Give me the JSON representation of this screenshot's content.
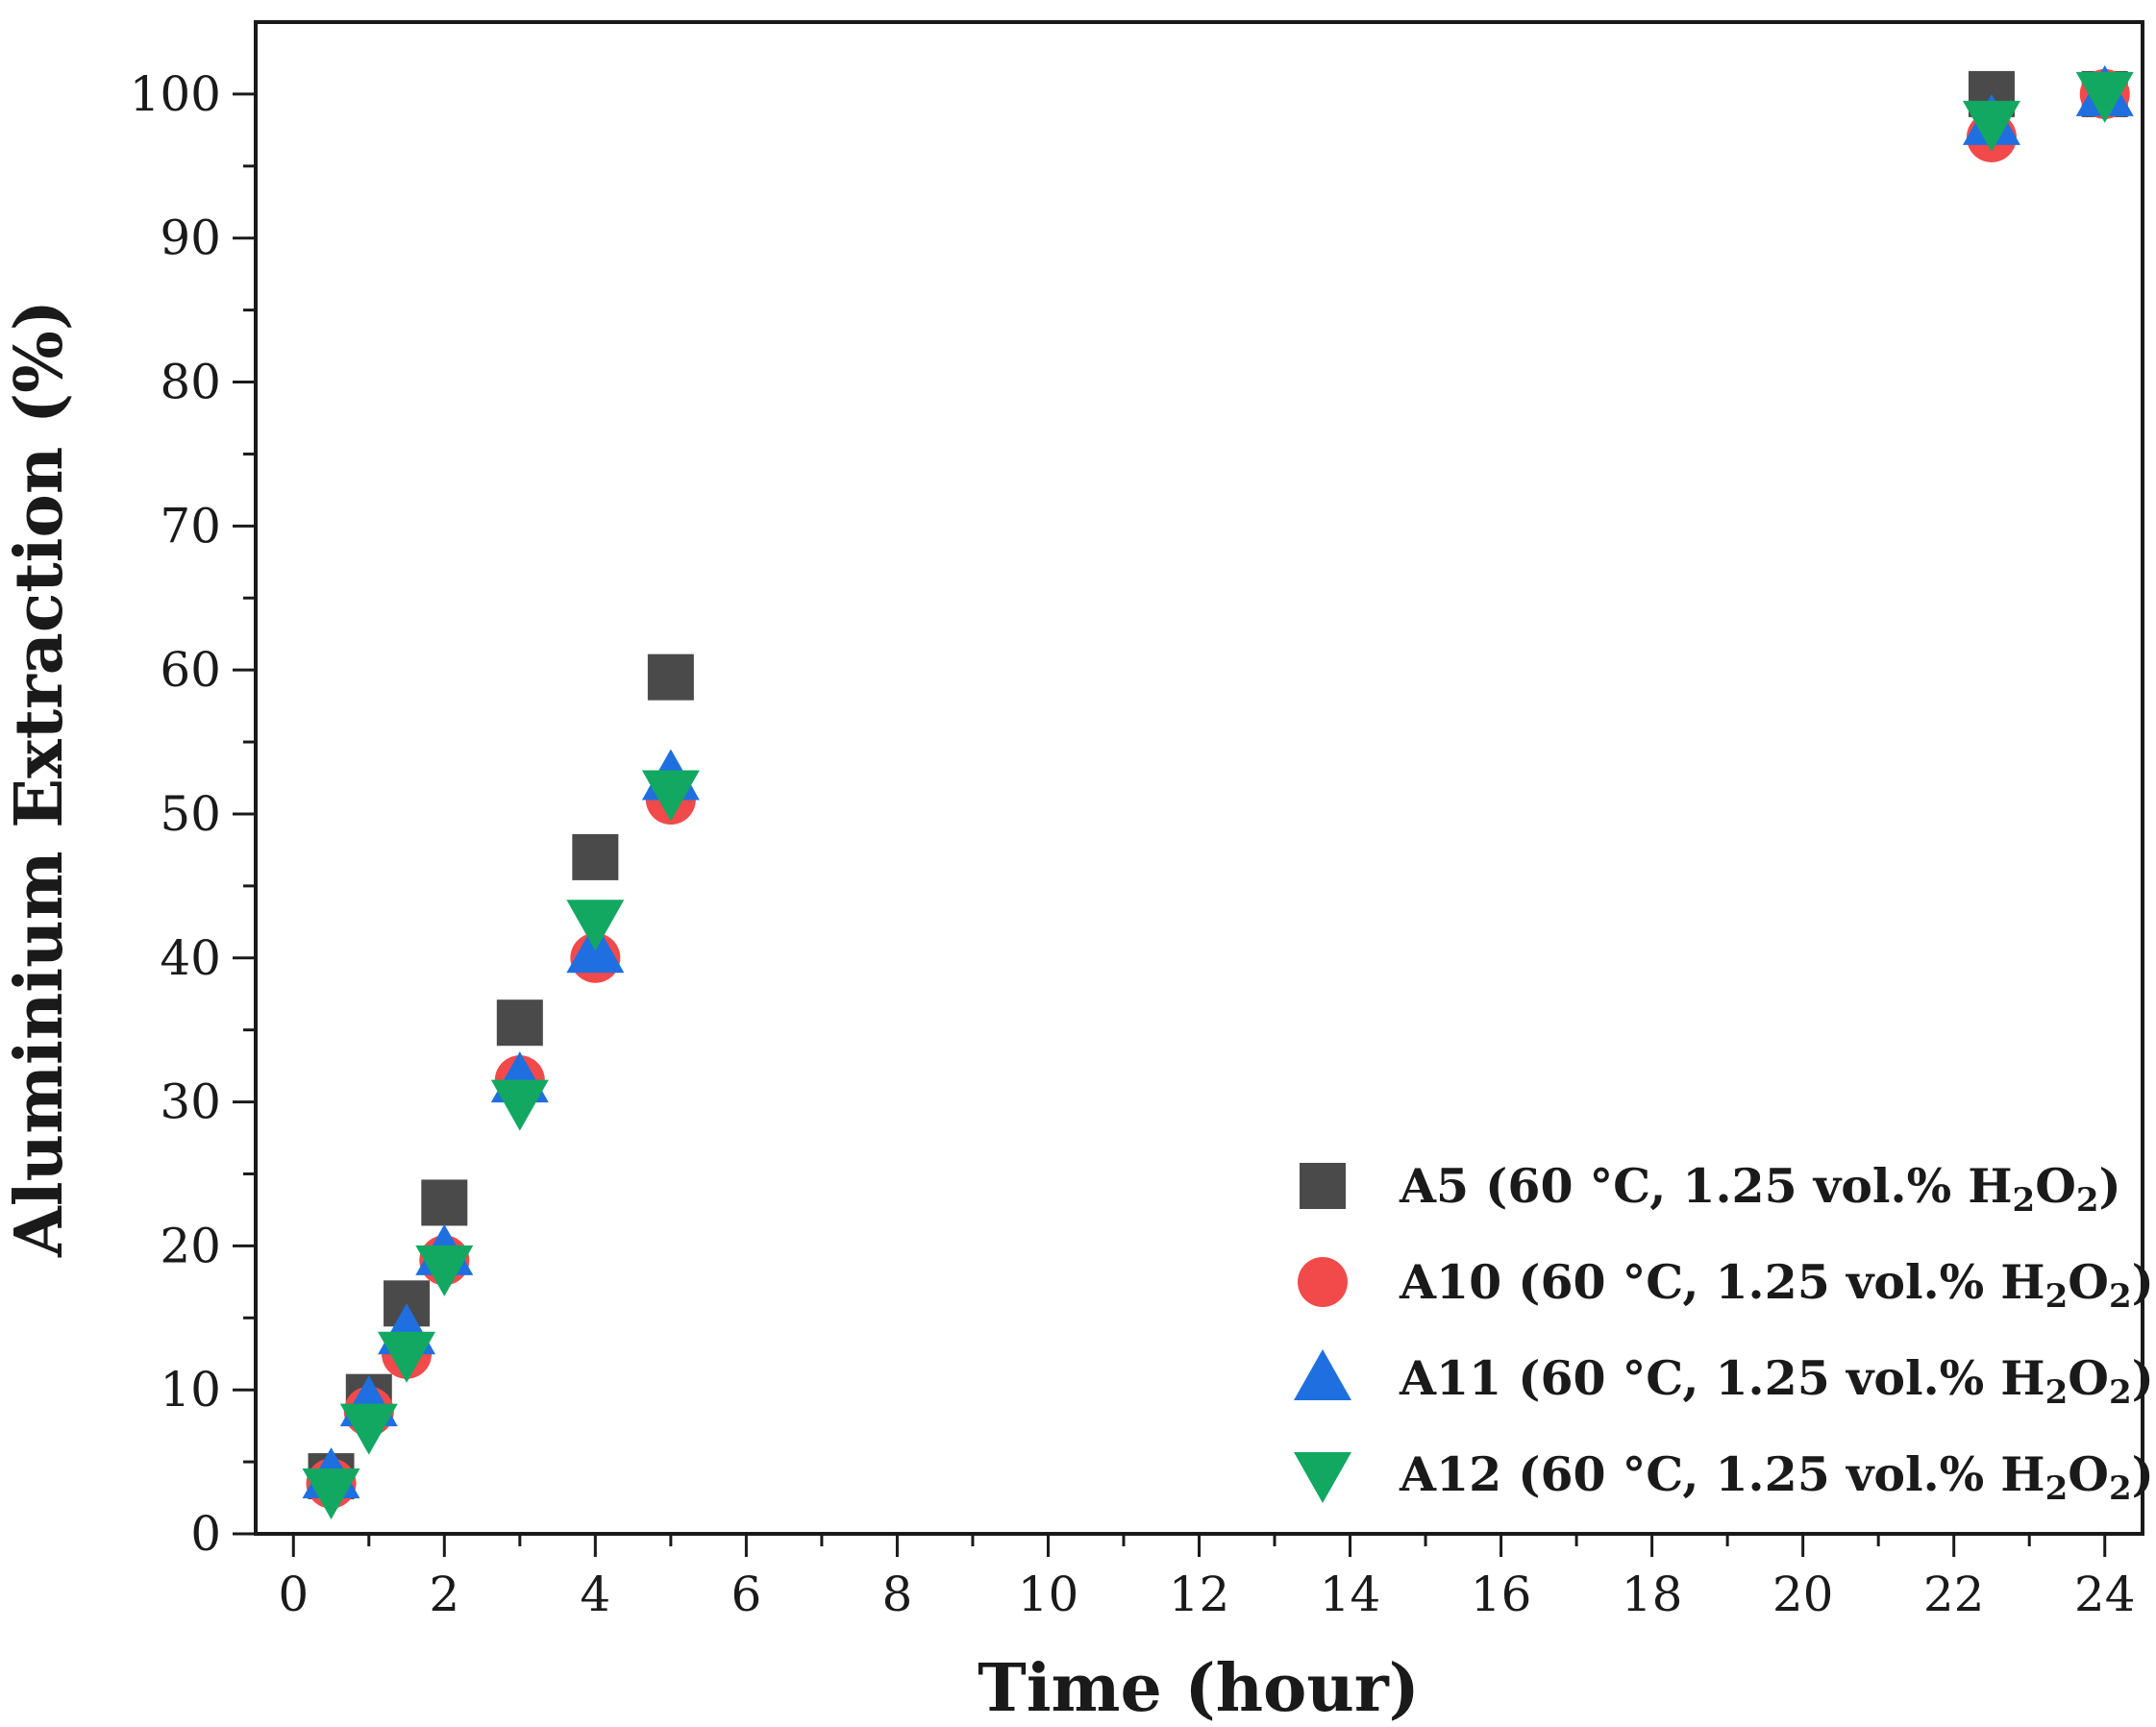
{
  "chart_data": {
    "type": "scatter",
    "title": "",
    "xlabel": "Time (hour)",
    "ylabel": "Aluminium Extraction (%)",
    "xlim": [
      -0.5,
      24.5
    ],
    "ylim": [
      0,
      105
    ],
    "x_ticks": [
      0,
      2,
      4,
      6,
      8,
      10,
      12,
      14,
      16,
      18,
      20,
      22,
      24
    ],
    "y_ticks": [
      0,
      10,
      20,
      30,
      40,
      50,
      60,
      70,
      80,
      90,
      100
    ],
    "grid": false,
    "legend_position": "bottom-right",
    "series": [
      {
        "name": "A5",
        "legend_prefix": "A5 (60 °C, 1.25 vol.% H",
        "legend_sub1": "2",
        "legend_mid": "O",
        "legend_sub2": "2",
        "legend_suffix": ")",
        "marker": "square",
        "color": "#4a4a4a",
        "x": [
          0.5,
          1,
          1.5,
          2,
          3,
          4,
          5,
          22.5,
          24
        ],
        "y": [
          4.0,
          9.5,
          16.0,
          23.0,
          35.5,
          47.0,
          59.5,
          100.0,
          100.0
        ]
      },
      {
        "name": "A10",
        "legend_prefix": "A10 (60 °C, 1.25 vol.% H",
        "legend_sub1": "2",
        "legend_mid": "O",
        "legend_sub2": "2",
        "legend_suffix": ")",
        "marker": "circle",
        "color": "#f24a4a",
        "x": [
          0.5,
          1,
          1.5,
          2,
          3,
          4,
          5,
          22.5,
          24
        ],
        "y": [
          3.5,
          8.5,
          12.5,
          19.0,
          31.5,
          40.0,
          51.0,
          97.0,
          100.0
        ]
      },
      {
        "name": "A11",
        "legend_prefix": "A11 (60 °C, 1.25 vol.% H",
        "legend_sub1": "2",
        "legend_mid": "O",
        "legend_sub2": "2",
        "legend_suffix": ")",
        "marker": "triangle-up",
        "color": "#1f6fe0",
        "x": [
          0.5,
          1,
          1.5,
          2,
          3,
          4,
          5,
          22.5,
          24
        ],
        "y": [
          4.0,
          9.0,
          14.0,
          19.5,
          31.5,
          40.5,
          52.5,
          98.0,
          100.0
        ]
      },
      {
        "name": "A12",
        "legend_prefix": "A12 (60 °C, 1.25 vol.% H",
        "legend_sub1": "2",
        "legend_mid": "O",
        "legend_sub2": "2",
        "legend_suffix": ")",
        "marker": "triangle-down",
        "color": "#12a861",
        "x": [
          0.5,
          1,
          1.5,
          2,
          3,
          4,
          5,
          22.5,
          24
        ],
        "y": [
          3.0,
          7.5,
          12.5,
          18.5,
          30.0,
          42.5,
          51.5,
          98.0,
          100.0
        ]
      }
    ]
  }
}
